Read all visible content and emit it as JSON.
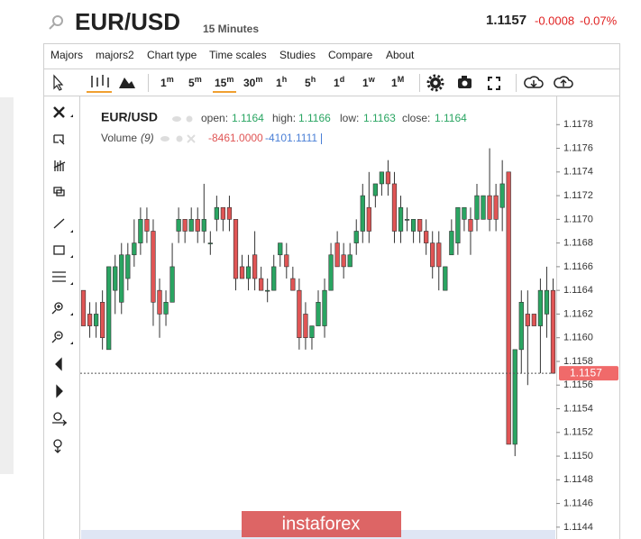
{
  "header": {
    "symbol": "EUR/USD",
    "interval": "15 Minutes",
    "price": "1.1157",
    "change": "-0.0008",
    "change_pct": "-0.07%"
  },
  "menu": [
    "Majors",
    "majors2",
    "Chart type",
    "Time scales",
    "Studies",
    "Compare",
    "About"
  ],
  "timeframes": [
    {
      "base": "1",
      "sup": "m"
    },
    {
      "base": "5",
      "sup": "m"
    },
    {
      "base": "15",
      "sup": "m"
    },
    {
      "base": "30",
      "sup": "m"
    },
    {
      "base": "1",
      "sup": "h"
    },
    {
      "base": "5",
      "sup": "h"
    },
    {
      "base": "1",
      "sup": "d"
    },
    {
      "base": "1",
      "sup": "w"
    },
    {
      "base": "1",
      "sup": "M"
    }
  ],
  "legend": {
    "symbol": "EUR/USD",
    "open_label": "open:",
    "open": "1.1164",
    "high_label": "high:",
    "high": "1.1166",
    "low_label": "low:",
    "low": "1.1163",
    "close_label": "close:",
    "close": "1.1164",
    "volume_label": "Volume",
    "volume_period": "(9)",
    "volume_value1": "-8461.0000",
    "volume_value2": "-4101.1111"
  },
  "watermark": "instaforex",
  "chart_data": {
    "type": "candlestick",
    "up_color": "#2aa562",
    "down_color": "#e05555",
    "candles": [
      [
        1.1164,
        1.1164,
        1.1161,
        1.1161
      ],
      [
        1.1162,
        1.1163,
        1.116,
        1.1161
      ],
      [
        1.1161,
        1.1163,
        1.116,
        1.1162
      ],
      [
        1.1163,
        1.1164,
        1.1159,
        1.116
      ],
      [
        1.1159,
        1.1166,
        1.1159,
        1.1166
      ],
      [
        1.1164,
        1.1167,
        1.1162,
        1.1166
      ],
      [
        1.1163,
        1.1168,
        1.1162,
        1.1167
      ],
      [
        1.1165,
        1.1168,
        1.1164,
        1.1167
      ],
      [
        1.1167,
        1.117,
        1.1166,
        1.1168
      ],
      [
        1.1168,
        1.1171,
        1.1167,
        1.117
      ],
      [
        1.117,
        1.1171,
        1.1168,
        1.1169
      ],
      [
        1.1169,
        1.117,
        1.1161,
        1.1163
      ],
      [
        1.1164,
        1.1165,
        1.116,
        1.1162
      ],
      [
        1.1162,
        1.1164,
        1.1161,
        1.1163
      ],
      [
        1.1163,
        1.1168,
        1.1163,
        1.1166
      ],
      [
        1.1169,
        1.1171,
        1.1168,
        1.117
      ],
      [
        1.117,
        1.117,
        1.1168,
        1.1169
      ],
      [
        1.1169,
        1.1171,
        1.1169,
        1.117
      ],
      [
        1.117,
        1.1171,
        1.1168,
        1.1169
      ],
      [
        1.1169,
        1.1173,
        1.1168,
        1.117
      ],
      [
        1.1168,
        1.1169,
        1.1167,
        1.1168
      ],
      [
        1.117,
        1.1172,
        1.1169,
        1.1171
      ],
      [
        1.1171,
        1.1171,
        1.1169,
        1.117
      ],
      [
        1.1171,
        1.1172,
        1.1169,
        1.117
      ],
      [
        1.117,
        1.117,
        1.1164,
        1.1165
      ],
      [
        1.1166,
        1.1167,
        1.1165,
        1.1165
      ],
      [
        1.1165,
        1.1167,
        1.1164,
        1.1166
      ],
      [
        1.1167,
        1.1169,
        1.1164,
        1.1165
      ],
      [
        1.1165,
        1.1166,
        1.1164,
        1.1164
      ],
      [
        1.1164,
        1.1165,
        1.1163,
        1.1164
      ],
      [
        1.1164,
        1.1167,
        1.1164,
        1.1166
      ],
      [
        1.1167,
        1.1168,
        1.1166,
        1.1168
      ],
      [
        1.1167,
        1.1168,
        1.1165,
        1.1166
      ],
      [
        1.1165,
        1.1166,
        1.1164,
        1.1164
      ],
      [
        1.1164,
        1.1165,
        1.1159,
        1.116
      ],
      [
        1.1162,
        1.1163,
        1.1159,
        1.116
      ],
      [
        1.116,
        1.1161,
        1.1159,
        1.1161
      ],
      [
        1.1161,
        1.1164,
        1.1161,
        1.1163
      ],
      [
        1.1161,
        1.1165,
        1.116,
        1.1164
      ],
      [
        1.1164,
        1.1168,
        1.1164,
        1.1167
      ],
      [
        1.1168,
        1.1169,
        1.1166,
        1.1166
      ],
      [
        1.1167,
        1.1168,
        1.1165,
        1.1166
      ],
      [
        1.1166,
        1.1168,
        1.1166,
        1.1167
      ],
      [
        1.1168,
        1.117,
        1.1167,
        1.1169
      ],
      [
        1.1169,
        1.1173,
        1.1168,
        1.1172
      ],
      [
        1.1171,
        1.1174,
        1.1168,
        1.1169
      ],
      [
        1.1172,
        1.1173,
        1.1171,
        1.1173
      ],
      [
        1.1173,
        1.1174,
        1.1172,
        1.1174
      ],
      [
        1.1174,
        1.1175,
        1.1172,
        1.1173
      ],
      [
        1.1173,
        1.1174,
        1.1168,
        1.1169
      ],
      [
        1.1169,
        1.1172,
        1.1168,
        1.1171
      ],
      [
        1.117,
        1.1171,
        1.1169,
        1.117
      ],
      [
        1.1169,
        1.117,
        1.1168,
        1.117
      ],
      [
        1.117,
        1.117,
        1.1168,
        1.1169
      ],
      [
        1.1169,
        1.117,
        1.1167,
        1.1168
      ],
      [
        1.1168,
        1.1169,
        1.1165,
        1.1166
      ],
      [
        1.1168,
        1.1169,
        1.1164,
        1.1166
      ],
      [
        1.1164,
        1.1166,
        1.1164,
        1.1166
      ],
      [
        1.1167,
        1.117,
        1.1167,
        1.1169
      ],
      [
        1.1168,
        1.1171,
        1.1167,
        1.1171
      ],
      [
        1.117,
        1.1171,
        1.1169,
        1.1171
      ],
      [
        1.117,
        1.1171,
        1.1167,
        1.1169
      ],
      [
        1.117,
        1.1173,
        1.1169,
        1.1172
      ],
      [
        1.117,
        1.1172,
        1.117,
        1.1172
      ],
      [
        1.1172,
        1.1176,
        1.1169,
        1.117
      ],
      [
        1.1172,
        1.1173,
        1.1169,
        1.117
      ],
      [
        1.1171,
        1.1175,
        1.1169,
        1.1173
      ],
      [
        1.1174,
        1.1174,
        1.1151,
        1.1151
      ],
      [
        1.1151,
        1.1159,
        1.115,
        1.1159
      ],
      [
        1.1159,
        1.1164,
        1.1157,
        1.1163
      ],
      [
        1.1162,
        1.1164,
        1.1156,
        1.1161
      ],
      [
        1.1162,
        1.1162,
        1.1161,
        1.1161
      ],
      [
        1.1161,
        1.1165,
        1.1157,
        1.1164
      ],
      [
        1.1162,
        1.1166,
        1.116,
        1.1164
      ],
      [
        1.1164,
        1.1165,
        1.1157,
        1.1157
      ]
    ],
    "ylim": [
      1.1143,
      1.118
    ],
    "yticks": [
      1.1144,
      1.1146,
      1.1148,
      {
        "value": 1.115,
        "label": "1.1150"
      },
      1.1152,
      1.1154,
      1.1156,
      1.1158,
      {
        "value": 1.116,
        "label": "1.1160"
      },
      1.1162,
      1.1164,
      1.1166,
      1.1168,
      {
        "value": 1.117,
        "label": "1.1170"
      },
      1.1172,
      1.1174,
      1.1176,
      1.1178
    ],
    "last_price": 1.1157
  }
}
